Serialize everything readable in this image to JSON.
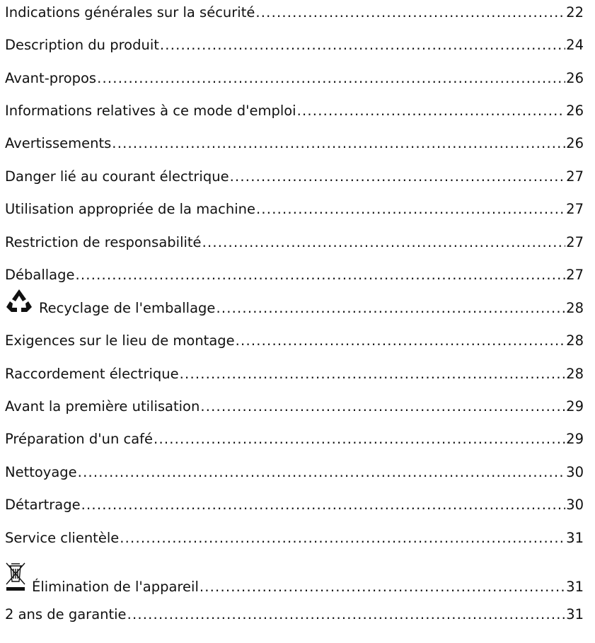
{
  "toc": {
    "entries": [
      {
        "label": "Indications générales sur la sécurité",
        "page": "22"
      },
      {
        "label": "Description du produit",
        "page": "24"
      },
      {
        "label": "Avant-propos",
        "page": "26"
      },
      {
        "label": "Informations relatives à ce mode d'emploi",
        "page": "26"
      },
      {
        "label": "Avertissements",
        "page": "26"
      },
      {
        "label": "Danger lié au courant électrique",
        "page": "27"
      },
      {
        "label": "Utilisation appropriée de la machine",
        "page": "27"
      },
      {
        "label": "Restriction de responsabilité",
        "page": "27"
      },
      {
        "label": "Déballage",
        "page": "27"
      },
      {
        "label": "Recyclage de l'emballage",
        "page": "28",
        "icon": "recycle-icon"
      },
      {
        "label": "Exigences sur le lieu de montage",
        "page": "28"
      },
      {
        "label": "Raccordement électrique",
        "page": "28"
      },
      {
        "label": "Avant la première utilisation",
        "page": "29"
      },
      {
        "label": "Préparation d'un café",
        "page": "29"
      },
      {
        "label": "Nettoyage",
        "page": "30"
      },
      {
        "label": "Détartrage",
        "page": "30"
      },
      {
        "label": "Service clientèle",
        "page": "31"
      },
      {
        "label": "Élimination de l'appareil",
        "page": "31",
        "icon": "crossed-bin-icon"
      },
      {
        "label": "2 ans de garantie",
        "page": "31"
      }
    ]
  }
}
